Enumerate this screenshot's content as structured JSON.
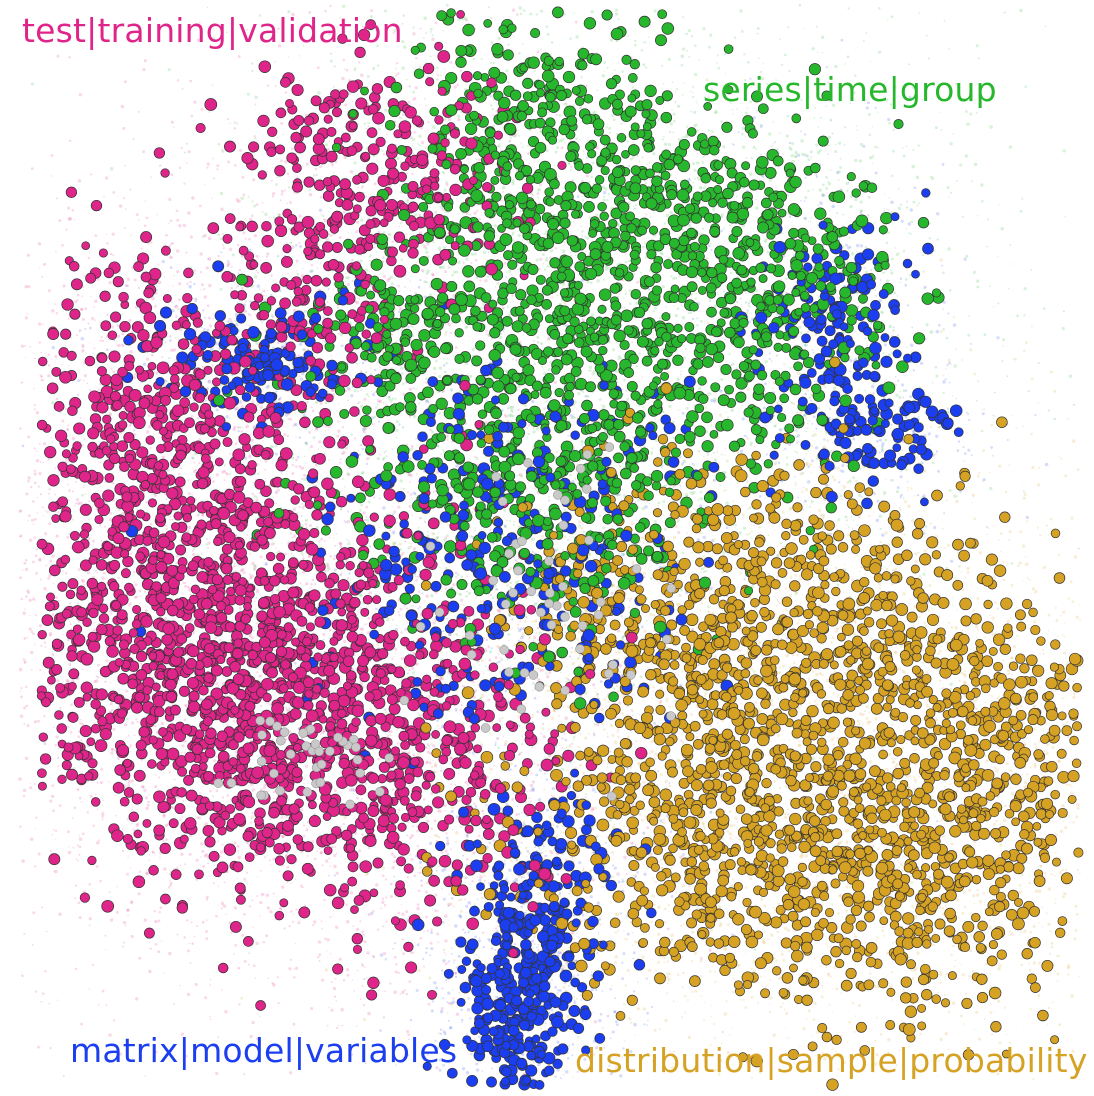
{
  "figure": {
    "type": "network-graph",
    "background": "#ffffff",
    "node_outline": "#333333",
    "clusters": [
      {
        "id": "pink",
        "label": "test|training|validation",
        "color": "#e0258a",
        "position_word": "top-left and left"
      },
      {
        "id": "green",
        "label": "series|time|group",
        "color": "#27b72c",
        "position_word": "top-center"
      },
      {
        "id": "blue",
        "label": "matrix|model|variables",
        "color": "#1b3ef0",
        "position_word": "radial arms, bottom-center"
      },
      {
        "id": "gold",
        "label": "distribution|sample|probability",
        "color": "#d6a224",
        "position_word": "bottom-right"
      }
    ],
    "minor_nodes": {
      "color": "#c9c9c9",
      "description": "grey and pale nodes scattered in the center"
    }
  }
}
